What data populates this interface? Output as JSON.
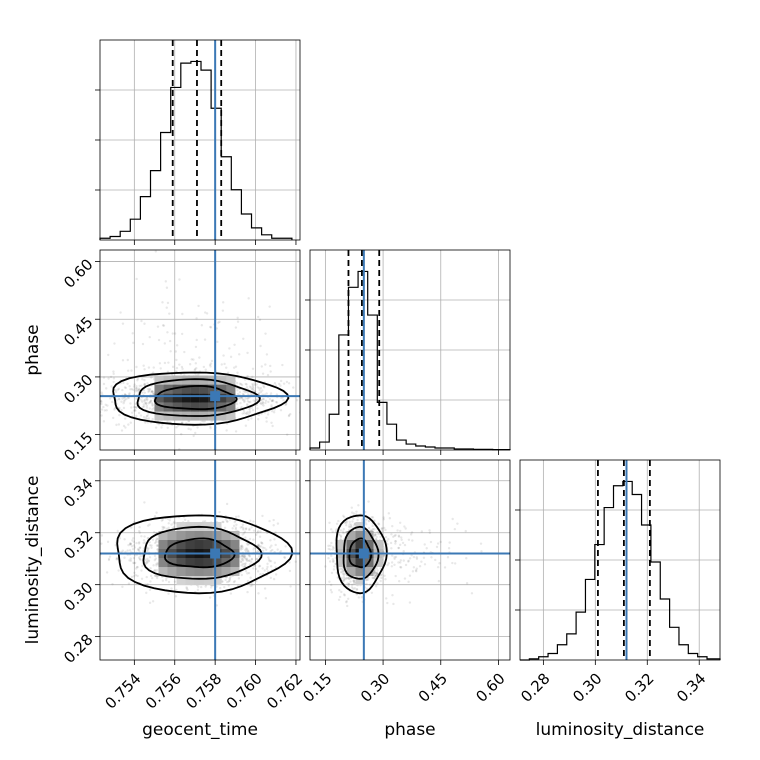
{
  "chart_data": {
    "type": "corner",
    "parameters": [
      {
        "name": "geocent_time",
        "label": "geocent_time",
        "range": [
          0.7523,
          0.7622
        ],
        "ticks": [
          "0.754",
          "0.756",
          "0.758",
          "0.760",
          "0.762"
        ],
        "truth": 0.758,
        "quantiles": [
          0.7559,
          0.7571,
          0.7583
        ],
        "hist_bins": [
          0.7523,
          0.7528,
          0.7533,
          0.7538,
          0.7543,
          0.7548,
          0.7553,
          0.7558,
          0.7563,
          0.7568,
          0.7573,
          0.7578,
          0.7583,
          0.7588,
          0.7593,
          0.7598,
          0.7603,
          0.7608,
          0.7613,
          0.7618
        ],
        "hist_counts": [
          1,
          2,
          5,
          12,
          25,
          40,
          62,
          88,
          102,
          103,
          98,
          76,
          48,
          29,
          15,
          7,
          3,
          1,
          1
        ]
      },
      {
        "name": "phase",
        "label": "phase",
        "range": [
          0.11,
          0.63
        ],
        "ticks": [
          "0.15",
          "0.30",
          "0.45",
          "0.60"
        ],
        "truth": 0.25,
        "quantiles": [
          0.21,
          0.245,
          0.29
        ],
        "hist_bins": [
          0.11,
          0.135,
          0.16,
          0.185,
          0.21,
          0.235,
          0.26,
          0.285,
          0.31,
          0.335,
          0.36,
          0.385,
          0.41,
          0.435,
          0.46,
          0.485,
          0.51,
          0.535,
          0.56,
          0.585,
          0.61,
          0.63
        ],
        "hist_counts": [
          1,
          4,
          18,
          58,
          82,
          90,
          68,
          24,
          13,
          5,
          3,
          2,
          1.5,
          1,
          1,
          0.5,
          0.5,
          0.3,
          0.3,
          0.2,
          0.2
        ]
      },
      {
        "name": "luminosity_distance",
        "label": "luminosity_distance",
        "range": [
          0.271,
          0.348
        ],
        "ticks": [
          "0.28",
          "0.30",
          "0.32",
          "0.34"
        ],
        "truth": 0.312,
        "quantiles": [
          0.301,
          0.311,
          0.321
        ],
        "hist_bins": [
          0.271,
          0.2746,
          0.2782,
          0.2818,
          0.2854,
          0.289,
          0.2926,
          0.2962,
          0.2998,
          0.3034,
          0.307,
          0.3106,
          0.3142,
          0.3178,
          0.3214,
          0.325,
          0.3286,
          0.3322,
          0.3358,
          0.3394,
          0.343,
          0.348
        ],
        "hist_counts": [
          0,
          0.5,
          1.5,
          3,
          7,
          12,
          22,
          37,
          53,
          70,
          80,
          82,
          76,
          62,
          45,
          28,
          15,
          7,
          3,
          1.5,
          0.5
        ]
      }
    ],
    "correlations": {
      "phase|geocent_time": {
        "center": [
          0.757,
          0.245
        ],
        "contours": [
          {
            "rx": 0.002,
            "ry": 0.03
          },
          {
            "rx": 0.003,
            "ry": 0.048
          },
          {
            "rx": 0.0043,
            "ry": 0.068
          }
        ]
      },
      "luminosity_distance|geocent_time": {
        "center": [
          0.7572,
          0.312
        ],
        "contours": [
          {
            "rx": 0.0017,
            "ry": 0.0055
          },
          {
            "rx": 0.0029,
            "ry": 0.01
          },
          {
            "rx": 0.0043,
            "ry": 0.015
          }
        ]
      },
      "luminosity_distance|phase": {
        "center": [
          0.24,
          0.312
        ],
        "contours": [
          {
            "rx": 0.028,
            "ry": 0.0055
          },
          {
            "rx": 0.045,
            "ry": 0.01
          },
          {
            "rx": 0.065,
            "ry": 0.015
          }
        ]
      }
    },
    "truth_color": "#3b78b5",
    "grid": true
  }
}
